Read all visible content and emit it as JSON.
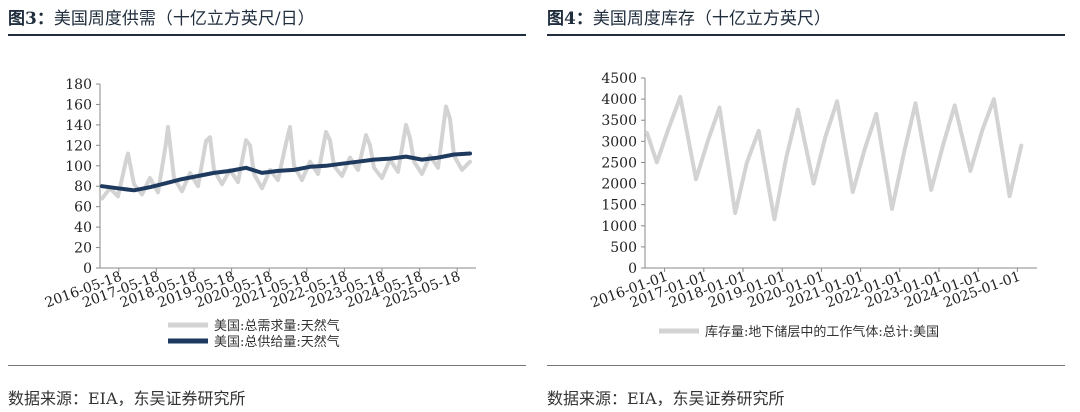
{
  "panels": [
    {
      "fig_label": "图3：",
      "title": "美国周度供需（十亿立方英尺/日）",
      "source": "数据来源：EIA，东吴证券研究所"
    },
    {
      "fig_label": "图4：",
      "title": "美国周度库存（十亿立方英尺）",
      "source": "数据来源：EIA，东吴证券研究所"
    }
  ],
  "colors": {
    "light_grey": "#d3d3d3",
    "navy": "#1f3a5f",
    "axis": "#888888"
  },
  "chart_data": [
    {
      "type": "line",
      "title": "",
      "xlabel": "",
      "ylabel": "",
      "ylim": [
        0,
        180
      ],
      "yticks": [
        0,
        20,
        40,
        60,
        80,
        100,
        120,
        140,
        160,
        180
      ],
      "xticks": [
        "2016-05-18",
        "2017-05-18",
        "2018-05-18",
        "2019-05-18",
        "2020-05-18",
        "2021-05-18",
        "2022-05-18",
        "2023-05-18",
        "2024-05-18",
        "2025-05-18"
      ],
      "legend_position": "bottom",
      "grid": false,
      "series": [
        {
          "name": "美国:总需求量:天然气",
          "color": "#d3d3d3",
          "x": [
            2016.4,
            2016.6,
            2016.8,
            2017.0,
            2017.05,
            2017.2,
            2017.4,
            2017.6,
            2017.8,
            2018.0,
            2018.05,
            2018.2,
            2018.4,
            2018.6,
            2018.8,
            2019.0,
            2019.1,
            2019.2,
            2019.4,
            2019.6,
            2019.8,
            2020.0,
            2020.1,
            2020.2,
            2020.4,
            2020.6,
            2020.8,
            2021.0,
            2021.1,
            2021.2,
            2021.4,
            2021.6,
            2021.8,
            2022.0,
            2022.1,
            2022.2,
            2022.4,
            2022.6,
            2022.8,
            2023.0,
            2023.1,
            2023.2,
            2023.4,
            2023.6,
            2023.8,
            2024.0,
            2024.1,
            2024.2,
            2024.4,
            2024.6,
            2024.8,
            2025.0,
            2025.1,
            2025.2,
            2025.4,
            2025.6
          ],
          "values": [
            68,
            78,
            70,
            105,
            112,
            82,
            72,
            88,
            74,
            122,
            138,
            88,
            75,
            93,
            80,
            124,
            128,
            96,
            82,
            96,
            84,
            125,
            120,
            92,
            78,
            96,
            86,
            122,
            138,
            100,
            86,
            104,
            92,
            133,
            125,
            100,
            90,
            108,
            96,
            130,
            120,
            98,
            88,
            106,
            94,
            140,
            127,
            104,
            92,
            110,
            98,
            158,
            146,
            110,
            96,
            104
          ]
        },
        {
          "name": "美国:总供给量:天然气",
          "color": "#1f3a5f",
          "x": [
            2016.4,
            2016.8,
            2017.2,
            2017.6,
            2018.0,
            2018.4,
            2018.8,
            2019.2,
            2019.6,
            2020.0,
            2020.4,
            2020.8,
            2021.2,
            2021.6,
            2022.0,
            2022.4,
            2022.8,
            2023.2,
            2023.6,
            2024.0,
            2024.4,
            2024.8,
            2025.2,
            2025.6
          ],
          "values": [
            80,
            78,
            76,
            79,
            83,
            87,
            90,
            93,
            95,
            98,
            93,
            95,
            96,
            99,
            100,
            102,
            104,
            106,
            107,
            109,
            106,
            108,
            111,
            112
          ]
        }
      ]
    },
    {
      "type": "line",
      "title": "",
      "xlabel": "",
      "ylabel": "",
      "ylim": [
        0,
        4500
      ],
      "yticks": [
        0,
        500,
        1000,
        1500,
        2000,
        2500,
        3000,
        3500,
        4000,
        4500
      ],
      "xticks": [
        "2016-01-01",
        "2017-01-01",
        "2018-01-01",
        "2019-01-01",
        "2020-01-01",
        "2021-01-01",
        "2022-01-01",
        "2023-01-01",
        "2024-01-01",
        "2025-01-01"
      ],
      "legend_position": "bottom",
      "grid": false,
      "series": [
        {
          "name": "库存量:地下储层中的工作气体:总计:美国",
          "color": "#d3d3d3",
          "x": [
            2016.0,
            2016.25,
            2016.55,
            2016.85,
            2017.25,
            2017.55,
            2017.85,
            2018.25,
            2018.55,
            2018.85,
            2019.25,
            2019.55,
            2019.85,
            2020.25,
            2020.55,
            2020.85,
            2021.25,
            2021.55,
            2021.85,
            2022.25,
            2022.55,
            2022.85,
            2023.25,
            2023.55,
            2023.85,
            2024.25,
            2024.55,
            2024.85,
            2025.25,
            2025.55
          ],
          "values": [
            3200,
            2500,
            3300,
            4050,
            2100,
            3000,
            3800,
            1300,
            2500,
            3250,
            1150,
            2600,
            3750,
            2000,
            3100,
            3950,
            1800,
            2800,
            3650,
            1400,
            2700,
            3900,
            1850,
            2900,
            3850,
            2300,
            3250,
            4000,
            1700,
            2900
          ]
        }
      ]
    }
  ]
}
